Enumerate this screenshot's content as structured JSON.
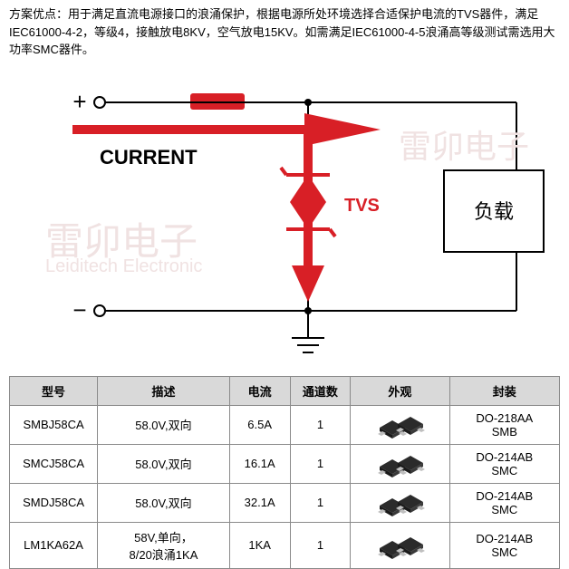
{
  "intro": "方案优点：用于满足直流电源接口的浪涌保护，根据电源所处环境选择合适保护电流的TVS器件，满足IEC61000-4-2，等级4，接触放电8KV，空气放电15KV。如需满足IEC61000-4-5浪涌高等级测试需选用大功率SMC器件。",
  "diagram": {
    "plus": "+",
    "minus": "−",
    "current_label": "CURRENT",
    "tvs_label": "TVS",
    "load_label": "负载",
    "wire_color": "#000000",
    "accent_color": "#d81f26",
    "wire_width": 2,
    "accent_width": 6,
    "terminal_radius": 6
  },
  "watermarks": {
    "line1": "雷卯电子",
    "line2": "Leiditech Electronic"
  },
  "table": {
    "headers": {
      "model": "型号",
      "desc": "描述",
      "current": "电流",
      "channels": "通道数",
      "appearance": "外观",
      "package": "封装"
    },
    "col_widths": [
      "16%",
      "24%",
      "11%",
      "11%",
      "18%",
      "20%"
    ],
    "rows": [
      {
        "model": "SMBJ58CA",
        "desc": "58.0V,双向",
        "current": "6.5A",
        "channels": "1",
        "package_l1": "DO-218AA",
        "package_l2": "SMB"
      },
      {
        "model": "SMCJ58CA",
        "desc": "58.0V,双向",
        "current": "16.1A",
        "channels": "1",
        "package_l1": "DO-214AB",
        "package_l2": "SMC"
      },
      {
        "model": "SMDJ58CA",
        "desc": "58.0V,双向",
        "current": "32.1A",
        "channels": "1",
        "package_l1": "DO-214AB",
        "package_l2": "SMC"
      },
      {
        "model": "LM1KA62A",
        "desc": "58V,单向，\n8/20浪涌1KA",
        "current": "1KA",
        "channels": "1",
        "package_l1": "DO-214AB",
        "package_l2": "SMC"
      }
    ]
  }
}
